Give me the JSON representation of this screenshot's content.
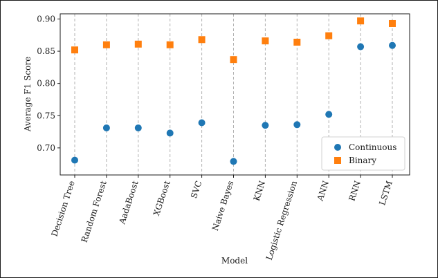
{
  "chart_data": {
    "type": "scatter",
    "categories": [
      "Decision Tree",
      "Random Forest",
      "AadaBoost",
      "XGBoost",
      "SVC",
      "Naive Bayes",
      "KNN",
      "Logistic Regression",
      "ANN",
      "RNN",
      "LSTM"
    ],
    "series": [
      {
        "name": "Continuous",
        "marker": "circle",
        "color": "#1f77b4",
        "values": [
          0.681,
          0.731,
          0.731,
          0.723,
          0.739,
          0.679,
          0.735,
          0.736,
          0.752,
          0.857,
          0.859
        ]
      },
      {
        "name": "Binary",
        "marker": "square",
        "color": "#ff7f0e",
        "values": [
          0.852,
          0.86,
          0.861,
          0.86,
          0.868,
          0.837,
          0.866,
          0.864,
          0.874,
          0.897,
          0.893
        ]
      }
    ],
    "xlabel": "Model",
    "ylabel": "Average F1 Score",
    "ylim": [
      0.658,
      0.908
    ],
    "yticks": [
      "0.70",
      "0.75",
      "0.80",
      "0.85",
      "0.90"
    ],
    "grid": "vertical dashed",
    "legend_position": "lower right"
  }
}
